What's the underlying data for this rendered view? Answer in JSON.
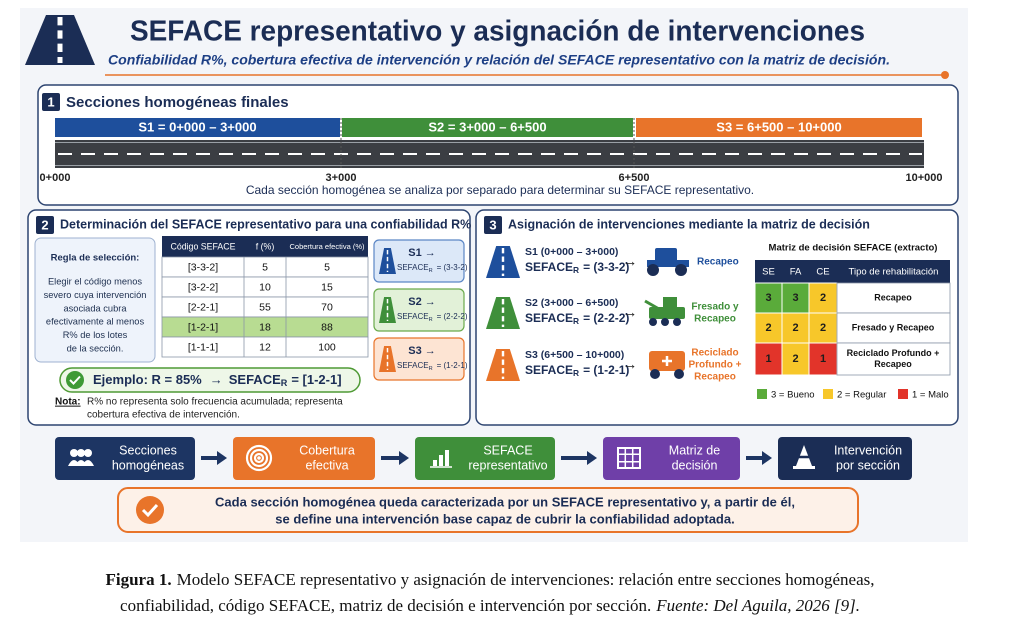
{
  "header": {
    "title": "SEFACE representativo y asignación de intervenciones",
    "subtitle": "Confiabilidad R%, cobertura efectiva de intervención y relación del SEFACE representativo con la matriz de decisión."
  },
  "section1": {
    "number": "1",
    "title": "Secciones homogéneas finales",
    "segments": [
      "S1 = 0+000 – 3+000",
      "S2 = 3+000 – 6+500",
      "S3 = 6+500 – 10+000"
    ],
    "stations": [
      "0+000",
      "3+000",
      "6+500",
      "10+000"
    ],
    "note": "Cada sección homogénea se analiza por separado para determinar su SEFACE representativo."
  },
  "section2": {
    "number": "2",
    "title": "Determinación del SEFACE representativo para una confiabilidad R%",
    "rule": {
      "title": "Regla de selección:",
      "lines": [
        "Elegir el código menos",
        "severo cuya intervención",
        "asociada cubra",
        "efectivamente al menos",
        "R% de los lotes",
        "de la sección."
      ]
    },
    "table": {
      "headers": [
        "Código SEFACE",
        "f (%)",
        "Cobertura efectiva (%)"
      ],
      "rows": [
        [
          "[3-3-2]",
          5,
          5
        ],
        [
          "[3-2-2]",
          10,
          15
        ],
        [
          "[2-2-1]",
          55,
          70
        ],
        [
          "[1-2-1]",
          18,
          88
        ],
        [
          "[1-1-1]",
          12,
          100
        ]
      ]
    },
    "cards": [
      {
        "title": "S1 →",
        "code": "SEFACE",
        "sub": "R",
        "value": "= (3-3-2)"
      },
      {
        "title": "S2 →",
        "code": "SEFACE",
        "sub": "R",
        "value": "= (2-2-2)"
      },
      {
        "title": "S3 →",
        "code": "SEFACE",
        "sub": "R",
        "value": "= (1-2-1)"
      }
    ],
    "example": {
      "text": "Ejemplo: R = 85%",
      "arrow": "→",
      "code": "SEFACE",
      "sub": "R",
      "value": "= [1-2-1]"
    },
    "note": {
      "label": "Nota:",
      "lines": [
        "R% no representa solo frecuencia acumulada; representa",
        "cobertura efectiva de intervención."
      ]
    }
  },
  "section3": {
    "number": "3",
    "title": "Asignación de intervenciones mediante la matriz de decisión",
    "rows": [
      {
        "section": "S1 (0+000 – 3+000)",
        "code": "SEFACE",
        "sub": "R",
        "value": "= (3-3-2)",
        "arrow": "→",
        "intervention": [
          "Recapeo"
        ]
      },
      {
        "section": "S2 (3+000 – 6+500)",
        "code": "SEFACE",
        "sub": "R",
        "value": "= (2-2-2)",
        "arrow": "→",
        "intervention": [
          "Fresado y",
          "Recapeo"
        ]
      },
      {
        "section": "S3 (6+500 – 10+000)",
        "code": "SEFACE",
        "sub": "R",
        "value": "= (1-2-1)",
        "arrow": "→",
        "intervention": [
          "Reciclado",
          "Profundo +",
          "Recapeo"
        ]
      }
    ],
    "matrix": {
      "title": "Matriz de decisión SEFACE (extracto)",
      "headers": [
        "SE",
        "FA",
        "CE",
        "Tipo de rehabilitación"
      ],
      "rows": [
        [
          3,
          3,
          2,
          [
            "Recapeo"
          ]
        ],
        [
          2,
          2,
          2,
          [
            "Fresado y Recapeo"
          ]
        ],
        [
          1,
          2,
          1,
          [
            "Reciclado Profundo +",
            "Recapeo"
          ]
        ]
      ],
      "legend": [
        "3 = Bueno",
        "2 = Regular",
        "1 = Malo"
      ]
    }
  },
  "flow": [
    [
      "Secciones",
      "homogéneas"
    ],
    [
      "Cobertura",
      "efectiva"
    ],
    [
      "SEFACE",
      "representativo"
    ],
    [
      "Matriz de",
      "decisión"
    ],
    [
      "Intervención",
      "por sección"
    ]
  ],
  "summary": [
    "Cada sección homogénea queda caracterizada por un SEFACE representativo y, a partir de él,",
    "se define una intervención base capaz de cubrir la confiabilidad adoptada."
  ],
  "caption": {
    "label": "Figura 1.",
    "line1": "Modelo SEFACE representativo y asignación de intervenciones: relación entre secciones homogéneas,",
    "line2": "confiabilidad, código SEFACE, matriz de decisión e intervención por sección.",
    "source": "Fuente: Del Aguila, 2026 [9]."
  }
}
